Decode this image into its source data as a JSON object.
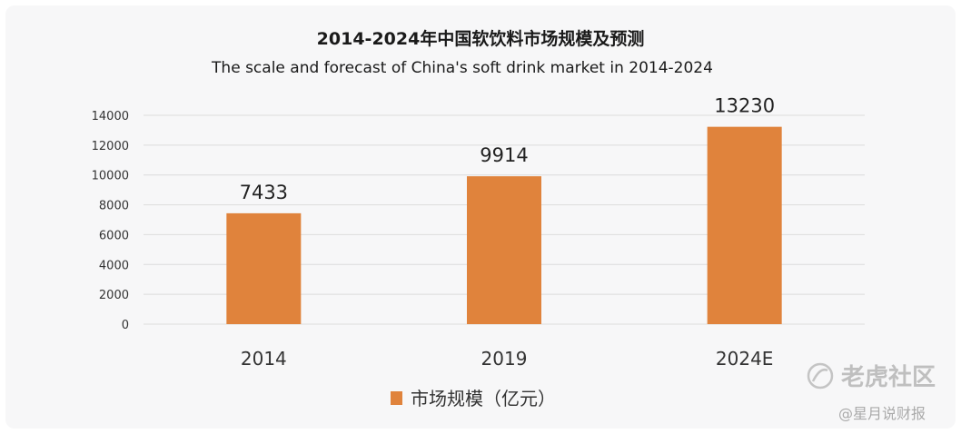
{
  "chart_data": {
    "type": "bar",
    "title": "2014-2024年中国软饮料市场规模及预测",
    "subtitle": "The scale and forecast of China's soft drink market in 2014-2024",
    "categories": [
      "2014",
      "2019",
      "2024E"
    ],
    "series": [
      {
        "name": "市场规模（亿元）",
        "values": [
          7433,
          9914,
          13230
        ],
        "color": "#e0833c"
      }
    ],
    "data_labels": [
      "7433",
      "9914",
      "13230"
    ],
    "ylim": [
      0,
      14000
    ],
    "yticks": [
      0,
      2000,
      4000,
      6000,
      8000,
      10000,
      12000,
      14000
    ],
    "ytick_labels": [
      "0",
      "2000",
      "4000",
      "6000",
      "8000",
      "10000",
      "12000",
      "14000"
    ],
    "grid": true,
    "legend_position": "bottom-center"
  },
  "watermark": {
    "text": "老虎社区",
    "sub": "@星月说财报"
  }
}
